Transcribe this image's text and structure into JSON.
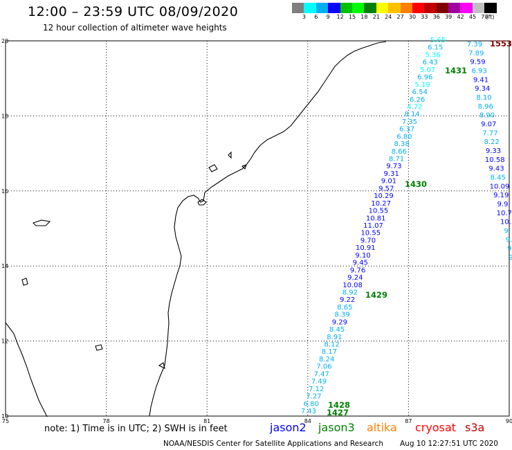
{
  "header": {
    "title": "12:00 – 23:59 UTC 08/09/2020",
    "subtitle": "12 hour collection of altimeter wave heights"
  },
  "color_scale": {
    "colors": [
      "#7f7f7f",
      "#00ffff",
      "#00b0f0",
      "#0000ff",
      "#00c000",
      "#00ff00",
      "#008000",
      "#ffff00",
      "#ffc000",
      "#ff8000",
      "#ff0000",
      "#c00000",
      "#800000",
      "#a000a0",
      "#ff00ff",
      "#c0c0c0",
      "#000000"
    ],
    "labels": [
      "3",
      "6",
      "9",
      "12",
      "15",
      "18",
      "21",
      "24",
      "27",
      "30",
      "33",
      "36",
      "39",
      "42",
      "45",
      "70",
      "(ft)"
    ]
  },
  "axes": {
    "x_ticks": [
      "75",
      "78",
      "81",
      "84",
      "87",
      "90"
    ],
    "y_ticks": [
      "10",
      "12",
      "14",
      "16",
      "18",
      "20"
    ]
  },
  "orbits": [
    {
      "id": "1427",
      "color": "#008000"
    },
    {
      "id": "1428",
      "color": "#008000"
    },
    {
      "id": "1429",
      "color": "#008000"
    },
    {
      "id": "1430",
      "color": "#008000"
    },
    {
      "id": "1431",
      "color": "#008000"
    },
    {
      "id": "1553",
      "color": "#800000"
    }
  ],
  "track_a_values": [
    "7.43",
    "6.80",
    "7.27",
    "7.12",
    "7.49",
    "7.47",
    "7.06",
    "8.24",
    "8.17",
    "8.12",
    "8.91",
    "8.45",
    "9.29",
    "8.39",
    "8.65",
    "9.22",
    "8.92",
    "10.08",
    "9.24",
    "9.76",
    "9.45",
    "9.10",
    "10.91",
    "9.70",
    "10.55",
    "11.07",
    "10.81",
    "10.55",
    "10.27",
    "10.29",
    "9.57",
    "9.01",
    "9.31",
    "9.73",
    "8.71",
    "8.66",
    "8.38",
    "6.80",
    "6.37",
    "7.35",
    "8.14",
    "4.72",
    "6.26",
    "6.54",
    "5.19",
    "6.96",
    "5.07",
    "6.43",
    "5.36",
    "6.15",
    "5.65"
  ],
  "track_b_values": [
    "7.39",
    "7.89",
    "9.59",
    "6.93",
    "9.41",
    "9.34",
    "8.10",
    "8.96",
    "8.90",
    "9.07",
    "7.77",
    "8.22",
    "9.33",
    "10.58",
    "9.43",
    "8.45",
    "10.09",
    "9.19",
    "9.9",
    "10.7",
    "10.",
    "9.",
    "9.",
    "9.",
    "9."
  ],
  "note": "note:  1) Time is in UTC;  2) SWH is in feet",
  "satellites": [
    {
      "name": "jason2",
      "color": "#0000ff"
    },
    {
      "name": "jason3",
      "color": "#008000"
    },
    {
      "name": "altika",
      "color": "#ff8000"
    },
    {
      "name": "cryosat",
      "color": "#ff0000"
    },
    {
      "name": "s3a",
      "color": "#c00000"
    }
  ],
  "footer": "NOAA/NESDIS Center for Satellite Applications and Research",
  "timestamp": "Aug 10 12:27:51 UTC 2020"
}
